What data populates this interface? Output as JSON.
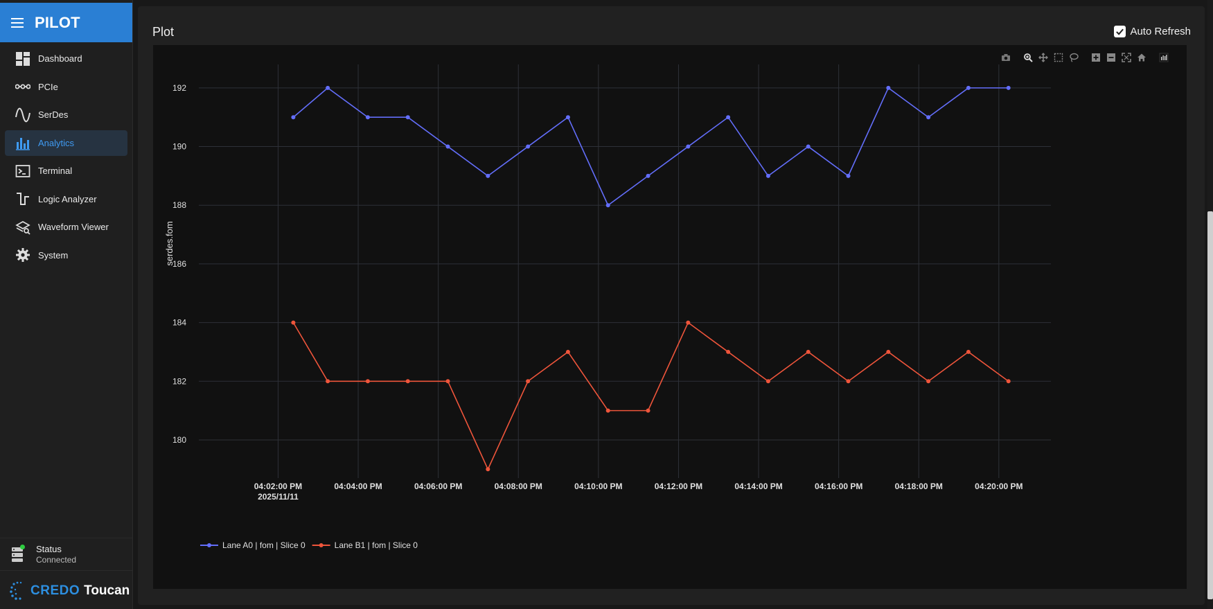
{
  "brand": {
    "name": "PILOT"
  },
  "sidebar": {
    "items": [
      {
        "label": "Dashboard",
        "icon": "dashboard-icon",
        "active": false
      },
      {
        "label": "PCIe",
        "icon": "pcie-icon",
        "active": false
      },
      {
        "label": "SerDes",
        "icon": "serdes-wave-icon",
        "active": false
      },
      {
        "label": "Analytics",
        "icon": "bar-chart-icon",
        "active": true
      },
      {
        "label": "Terminal",
        "icon": "terminal-icon",
        "active": false
      },
      {
        "label": "Logic Analyzer",
        "icon": "logic-analyzer-icon",
        "active": false
      },
      {
        "label": "Waveform Viewer",
        "icon": "waveform-viewer-icon",
        "active": false
      },
      {
        "label": "System",
        "icon": "gear-icon",
        "active": false
      }
    ],
    "status": {
      "title": "Status",
      "value": "Connected",
      "icon": "server-status-icon"
    },
    "footer": {
      "logo_word": "CREDO",
      "product": "Toucan"
    }
  },
  "card": {
    "title": "Plot",
    "auto_refresh": {
      "label": "Auto Refresh",
      "checked": true
    }
  },
  "colors": {
    "accent": "#2a7fd4",
    "active_text": "#3f9bf3",
    "series_a": "#636efa",
    "series_b": "#ef553b"
  },
  "chart_data": {
    "type": "line",
    "ylabel": "serdes.fom",
    "ylim": [
      178.7,
      192.8
    ],
    "yticks": [
      180,
      182,
      184,
      186,
      188,
      190,
      192
    ],
    "xticks": [
      {
        "label": "04:02:00 PM",
        "sublabel": "2025/11/11",
        "t": 0
      },
      {
        "label": "04:04:00 PM",
        "sublabel": "",
        "t": 2
      },
      {
        "label": "04:06:00 PM",
        "sublabel": "",
        "t": 4
      },
      {
        "label": "04:08:00 PM",
        "sublabel": "",
        "t": 6
      },
      {
        "label": "04:10:00 PM",
        "sublabel": "",
        "t": 8
      },
      {
        "label": "04:12:00 PM",
        "sublabel": "",
        "t": 10
      },
      {
        "label": "04:14:00 PM",
        "sublabel": "",
        "t": 12
      },
      {
        "label": "04:16:00 PM",
        "sublabel": "",
        "t": 14
      },
      {
        "label": "04:18:00 PM",
        "sublabel": "",
        "t": 16
      },
      {
        "label": "04:20:00 PM",
        "sublabel": "",
        "t": 18
      }
    ],
    "xlim": [
      -1.98,
      19.3
    ],
    "x": [
      0.38,
      1.24,
      2.24,
      3.24,
      4.24,
      5.24,
      6.24,
      7.24,
      8.24,
      9.24,
      10.24,
      11.24,
      12.24,
      13.24,
      14.24,
      15.24,
      16.24,
      17.24,
      18.24
    ],
    "series": [
      {
        "name": "Lane A0 | fom | Slice 0",
        "color": "#636efa",
        "values": [
          191,
          192,
          191,
          191,
          190,
          189,
          190,
          191,
          188,
          189,
          190,
          191,
          189,
          190,
          189,
          192,
          191,
          192,
          192
        ]
      },
      {
        "name": "Lane B1 | fom | Slice 0",
        "color": "#ef553b",
        "values": [
          184,
          182,
          182,
          182,
          182,
          179,
          182,
          183,
          181,
          181,
          184,
          183,
          182,
          183,
          182,
          183,
          182,
          183,
          182
        ]
      }
    ],
    "grid": true,
    "legend": "bottom-left"
  }
}
